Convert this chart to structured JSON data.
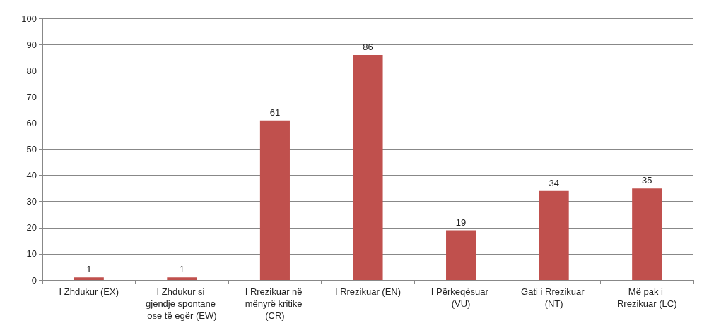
{
  "chart_data": {
    "type": "bar",
    "categories": [
      "I Zhdukur (EX)",
      "I Zhdukur si gjendje spontane ose të egër (EW)",
      "I Rrezikuar në mënyrë kritike (CR)",
      "I Rrezikuar (EN)",
      "I Përkeqësuar (VU)",
      "Gati i Rrezikuar (NT)",
      "Më pak i Rrezikuar (LC)"
    ],
    "values": [
      1,
      1,
      61,
      86,
      19,
      34,
      35
    ],
    "color": "#c0504d",
    "ylim": [
      0,
      100
    ],
    "yticks": [
      0,
      10,
      20,
      30,
      40,
      50,
      60,
      70,
      80,
      90,
      100
    ],
    "grid": "y",
    "data_labels": true
  }
}
